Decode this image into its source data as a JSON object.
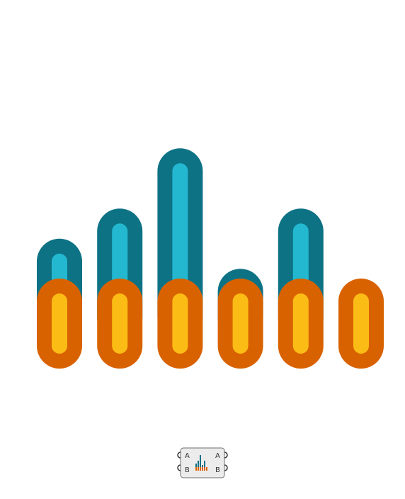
{
  "colors": {
    "blue_outer": "#0e7285",
    "blue_inner": "#23b8d0",
    "orange_outer": "#d96200",
    "orange_inner": "#fbbc16",
    "node_fill": "#ececec",
    "node_stroke": "#6e6e6e"
  },
  "canvas": {
    "bars": [
      {
        "blue_level": 3.1,
        "orange_level": 1
      },
      {
        "blue_level": 4.1,
        "orange_level": 1
      },
      {
        "blue_level": 6.1,
        "orange_level": 1
      },
      {
        "blue_level": 2.1,
        "orange_level": 1
      },
      {
        "blue_level": 4.1,
        "orange_level": 1
      },
      {
        "blue_level": 0,
        "orange_level": 1
      }
    ]
  },
  "component": {
    "icon": "bar-graph-icon",
    "inputs": [
      "A",
      "B"
    ],
    "outputs": [
      "A",
      "B"
    ]
  }
}
